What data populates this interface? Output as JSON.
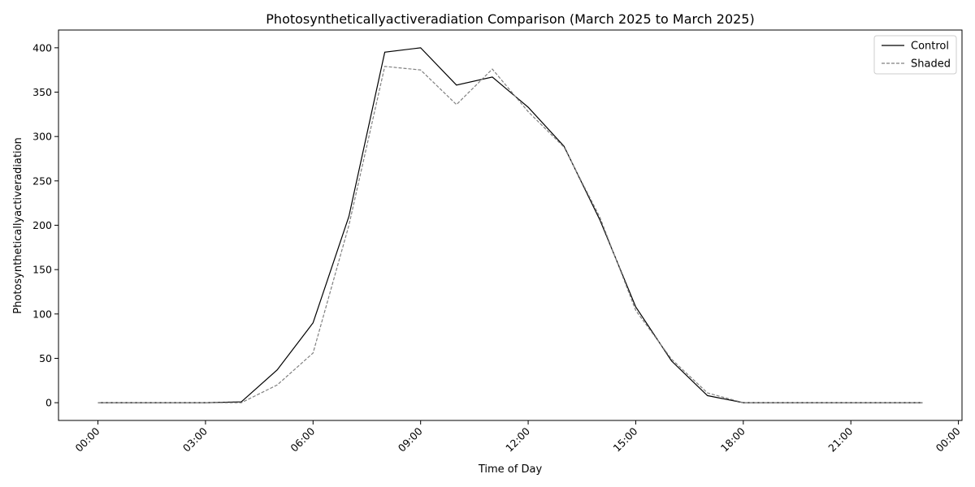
{
  "chart_data": {
    "type": "line",
    "title": "Photosyntheticallyactiveradiation Comparison (March 2025 to March 2025)",
    "xlabel": "Time of Day",
    "ylabel": "Photosyntheticallyactiveradiation",
    "x": [
      0,
      1,
      2,
      3,
      4,
      5,
      6,
      7,
      8,
      9,
      10,
      11,
      12,
      13,
      14,
      15,
      16,
      17,
      18,
      19,
      20,
      21,
      22,
      23
    ],
    "xlim": [
      -1.1,
      24.1
    ],
    "ylim": [
      -20,
      420
    ],
    "x_ticks": [
      {
        "value": 0,
        "label": "00:00"
      },
      {
        "value": 3,
        "label": "03:00"
      },
      {
        "value": 6,
        "label": "06:00"
      },
      {
        "value": 9,
        "label": "09:00"
      },
      {
        "value": 12,
        "label": "12:00"
      },
      {
        "value": 15,
        "label": "15:00"
      },
      {
        "value": 18,
        "label": "18:00"
      },
      {
        "value": 21,
        "label": "21:00"
      },
      {
        "value": 24,
        "label": "00:00"
      }
    ],
    "y_ticks": [
      0,
      50,
      100,
      150,
      200,
      250,
      300,
      350,
      400
    ],
    "grid": false,
    "legend_position": "top-right",
    "series": [
      {
        "name": "Control",
        "color": "#000000",
        "style": "solid",
        "values": [
          0,
          0,
          0,
          0,
          1,
          37,
          90,
          210,
          395,
          400,
          358,
          367,
          333,
          289,
          206,
          108,
          47,
          8,
          0,
          0,
          0,
          0,
          0,
          0
        ]
      },
      {
        "name": "Shaded",
        "color": "#808080",
        "style": "dashed",
        "values": [
          0,
          0,
          0,
          0,
          0,
          20,
          56,
          200,
          379,
          375,
          336,
          376,
          328,
          288,
          209,
          104,
          49,
          11,
          0,
          0,
          0,
          0,
          0,
          0
        ]
      }
    ]
  }
}
